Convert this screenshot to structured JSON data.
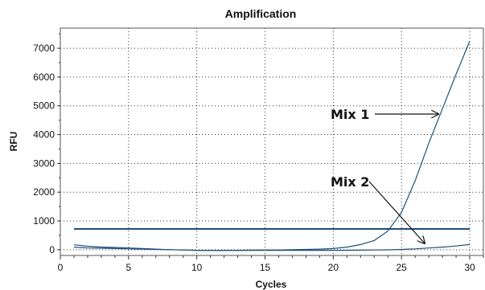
{
  "chart_data": {
    "type": "line",
    "title": "Amplification",
    "xlabel": "Cycles",
    "ylabel": "RFU",
    "xlim": [
      0,
      31
    ],
    "ylim": [
      -200,
      7700
    ],
    "xticks": [
      0,
      5,
      10,
      15,
      20,
      25,
      30
    ],
    "yticks": [
      0,
      1000,
      2000,
      3000,
      4000,
      5000,
      6000,
      7000
    ],
    "grid": true,
    "line_color": "#1f4e79",
    "series": [
      {
        "name": "Mix 1",
        "x": [
          1,
          2,
          3,
          4,
          5,
          6,
          7,
          8,
          9,
          10,
          11,
          12,
          13,
          14,
          15,
          16,
          17,
          18,
          19,
          20,
          21,
          22,
          23,
          24,
          25,
          26,
          27,
          28,
          29,
          30
        ],
        "values": [
          170,
          120,
          90,
          80,
          60,
          40,
          20,
          0,
          -10,
          -20,
          -20,
          -20,
          -20,
          -15,
          -10,
          -10,
          0,
          10,
          20,
          40,
          90,
          180,
          320,
          650,
          1300,
          2400,
          3700,
          4900,
          6100,
          7250
        ]
      },
      {
        "name": "Mix 2",
        "x": [
          1,
          2,
          3,
          4,
          5,
          6,
          7,
          8,
          9,
          10,
          11,
          12,
          13,
          14,
          15,
          16,
          17,
          18,
          19,
          20,
          21,
          22,
          23,
          24,
          25,
          26,
          27,
          28,
          29,
          30
        ],
        "values": [
          90,
          60,
          50,
          40,
          30,
          20,
          10,
          0,
          -10,
          -20,
          -20,
          -25,
          -25,
          -25,
          -25,
          -25,
          -20,
          -20,
          -20,
          -20,
          -20,
          -15,
          -10,
          -5,
          10,
          30,
          60,
          90,
          130,
          180
        ]
      }
    ],
    "threshold": {
      "value": 720,
      "x": [
        1,
        30
      ]
    },
    "annotations": [
      {
        "text": "Mix 1",
        "target_series": "Mix 1",
        "target_x": 27.7
      },
      {
        "text": "Mix 2",
        "target_series": "Mix 2",
        "target_x": 26.7
      }
    ]
  }
}
